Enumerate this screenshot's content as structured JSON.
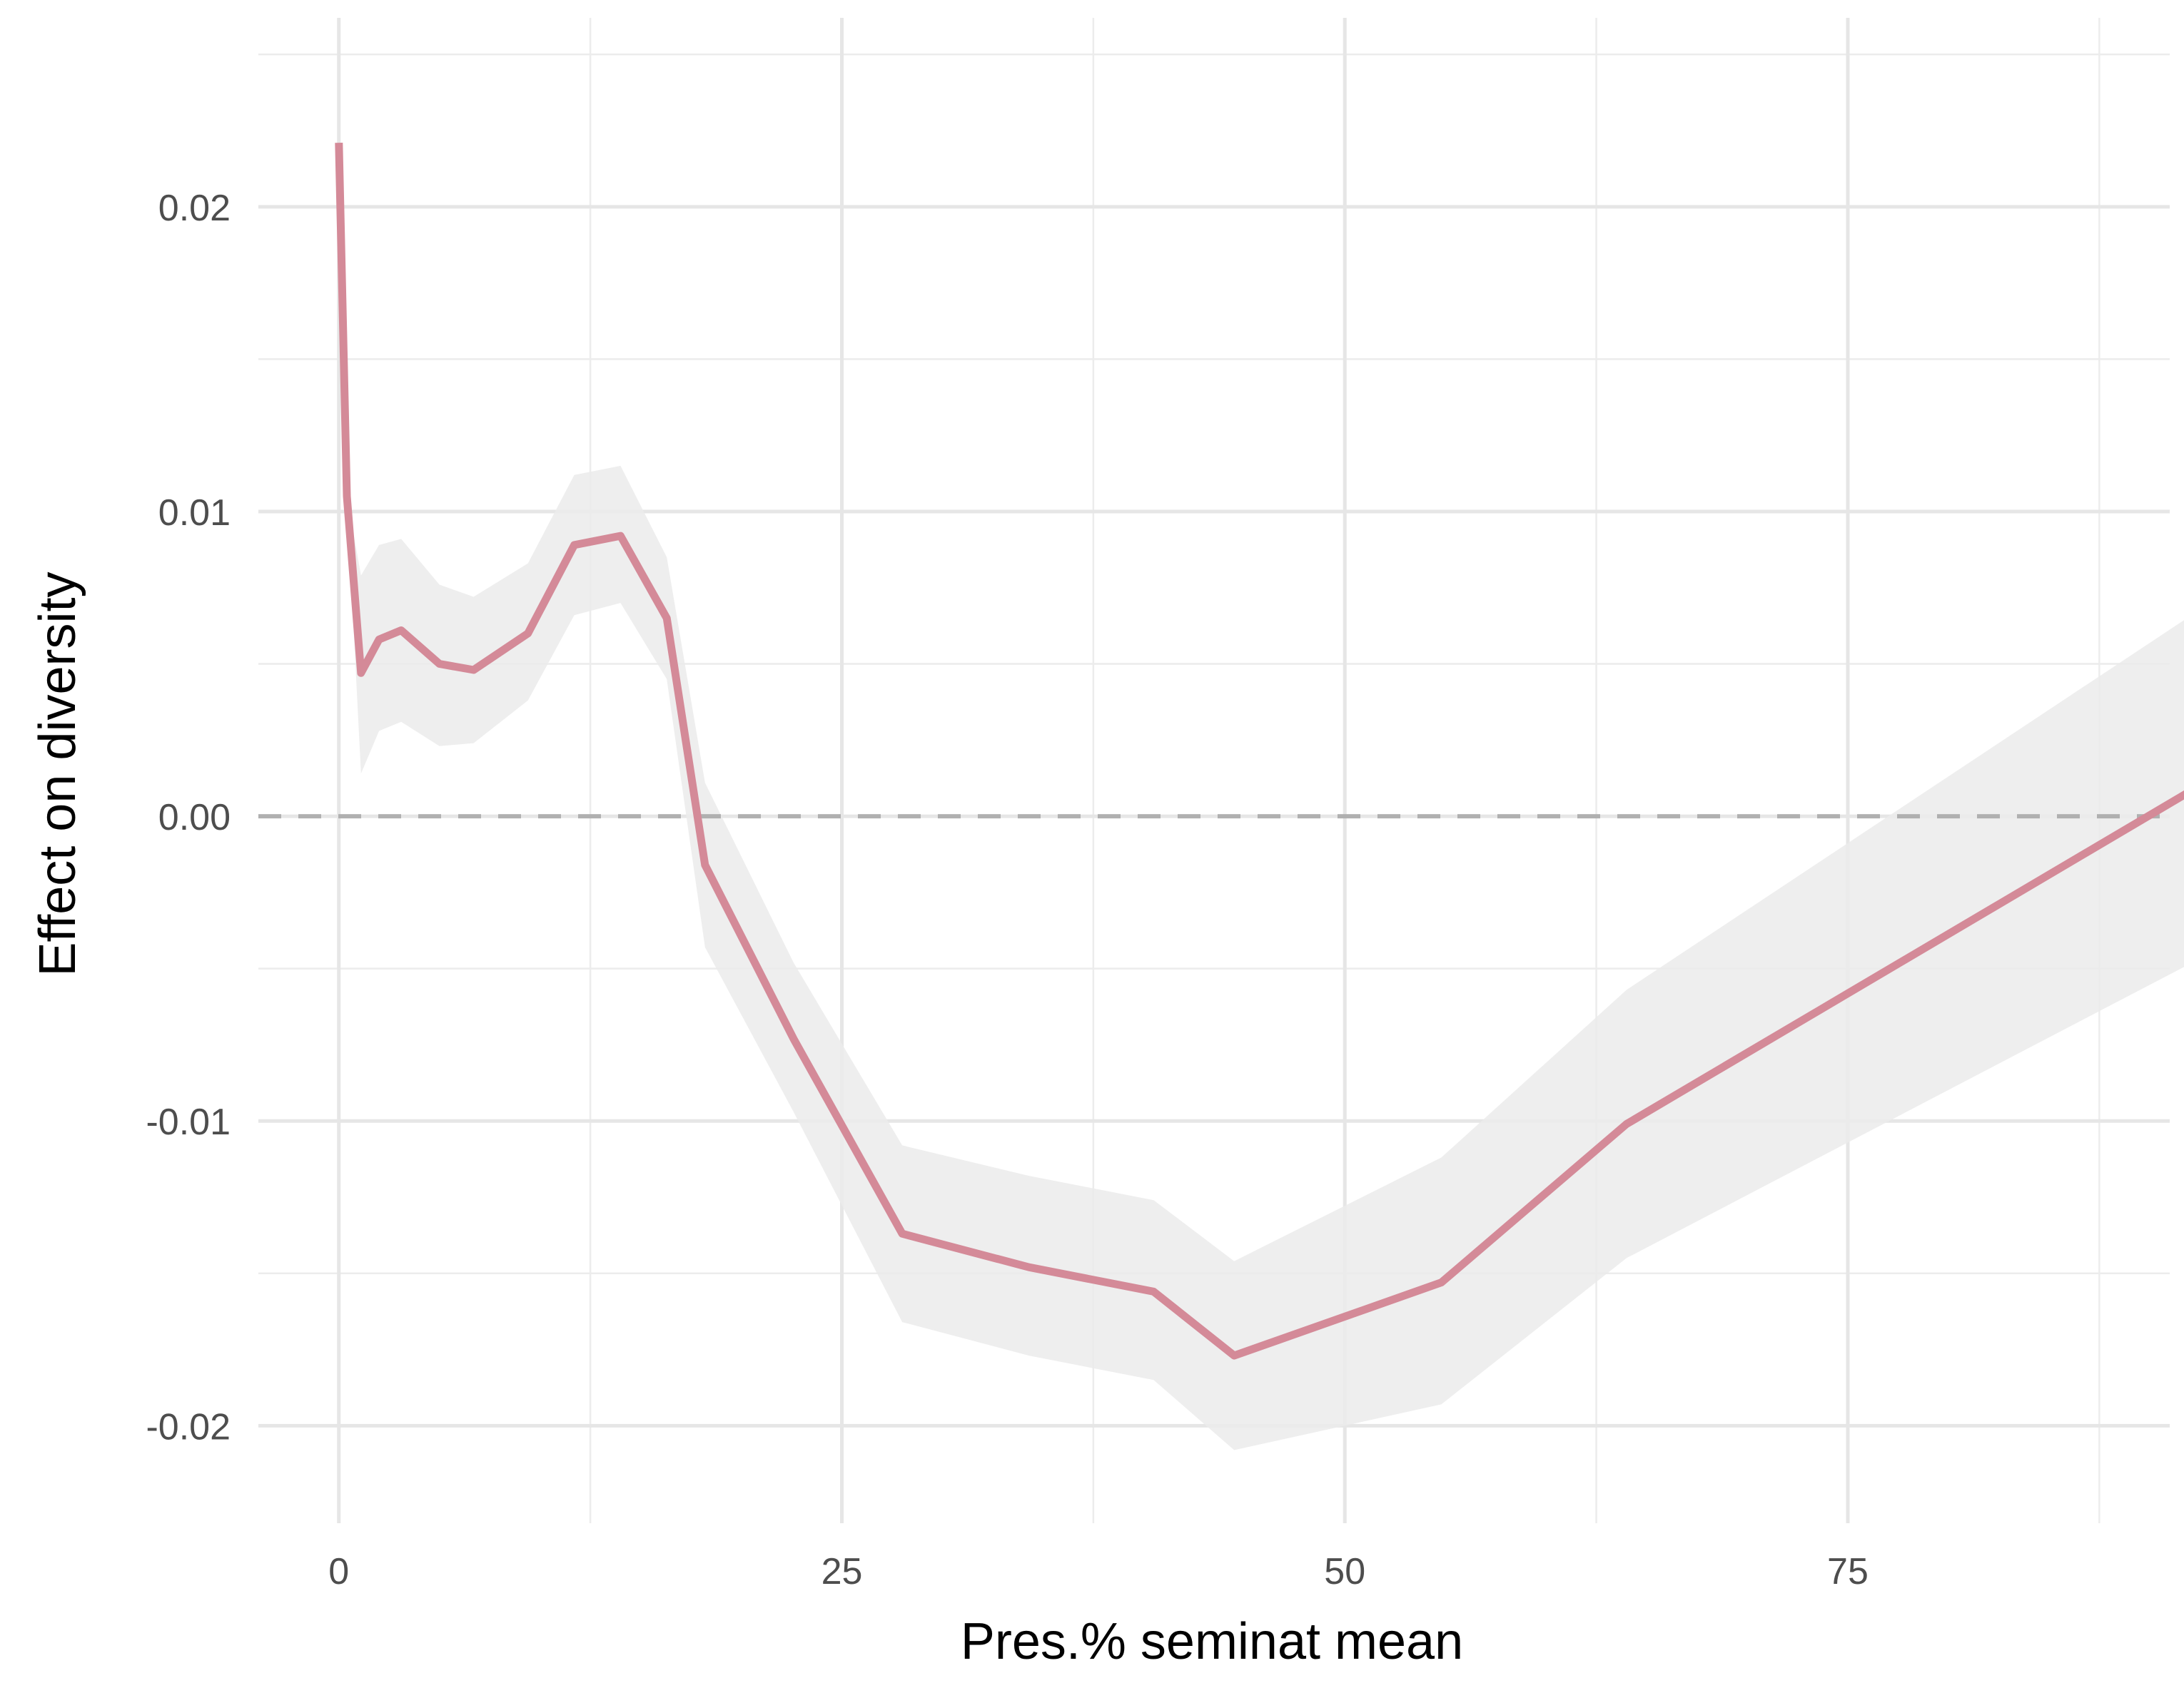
{
  "chart_data": {
    "type": "line",
    "xlabel": "Pres.% seminat mean",
    "ylabel": "Effect on diversity",
    "xlim": [
      -4,
      91
    ],
    "ylim": [
      -0.0232,
      0.0262
    ],
    "x_ticks": [
      0,
      25,
      50,
      75
    ],
    "x_tick_labels": [
      "0",
      "25",
      "50",
      "75"
    ],
    "y_ticks": [
      -0.02,
      -0.01,
      0,
      0.01,
      0.02
    ],
    "y_tick_labels": [
      "-0.02",
      "-0.01",
      "0.00",
      "0.01",
      "0.02"
    ],
    "grid": true,
    "reference_line": {
      "y": 0,
      "style": "dashed"
    },
    "series": [
      {
        "line_color": "#d48a98",
        "ribbon_color": "#ebebeb",
        "points": [
          {
            "x": 0.0,
            "y": 0.0221,
            "lower": 0.0221,
            "upper": 0.0221
          },
          {
            "x": 0.4,
            "y": 0.0105,
            "lower": 0.0105,
            "upper": 0.0105
          },
          {
            "x": 1.1,
            "y": 0.0047,
            "lower": 0.0014,
            "upper": 0.0079
          },
          {
            "x": 2.0,
            "y": 0.0058,
            "lower": 0.0028,
            "upper": 0.0089
          },
          {
            "x": 3.1,
            "y": 0.0061,
            "lower": 0.0031,
            "upper": 0.0091
          },
          {
            "x": 5.0,
            "y": 0.005,
            "lower": 0.0023,
            "upper": 0.0076
          },
          {
            "x": 6.7,
            "y": 0.0048,
            "lower": 0.0024,
            "upper": 0.0072
          },
          {
            "x": 9.4,
            "y": 0.006,
            "lower": 0.0038,
            "upper": 0.0083
          },
          {
            "x": 11.7,
            "y": 0.0089,
            "lower": 0.0066,
            "upper": 0.0112
          },
          {
            "x": 14.0,
            "y": 0.0092,
            "lower": 0.007,
            "upper": 0.0115
          },
          {
            "x": 16.3,
            "y": 0.0065,
            "lower": 0.0045,
            "upper": 0.0085
          },
          {
            "x": 18.2,
            "y": -0.0016,
            "lower": -0.0043,
            "upper": 0.0011
          },
          {
            "x": 22.6,
            "y": -0.0073,
            "lower": -0.0097,
            "upper": -0.0048
          },
          {
            "x": 28.0,
            "y": -0.0137,
            "lower": -0.0166,
            "upper": -0.0108
          },
          {
            "x": 34.3,
            "y": -0.0148,
            "lower": -0.0177,
            "upper": -0.0118
          },
          {
            "x": 40.5,
            "y": -0.0156,
            "lower": -0.0185,
            "upper": -0.0126
          },
          {
            "x": 44.5,
            "y": -0.0177,
            "lower": -0.0208,
            "upper": -0.0146
          },
          {
            "x": 54.8,
            "y": -0.0153,
            "lower": -0.0193,
            "upper": -0.0112
          },
          {
            "x": 64.0,
            "y": -0.0101,
            "lower": -0.0145,
            "upper": -0.0057
          },
          {
            "x": 93.0,
            "y": 0.0012,
            "lower": -0.0045,
            "upper": 0.007
          }
        ]
      }
    ]
  }
}
